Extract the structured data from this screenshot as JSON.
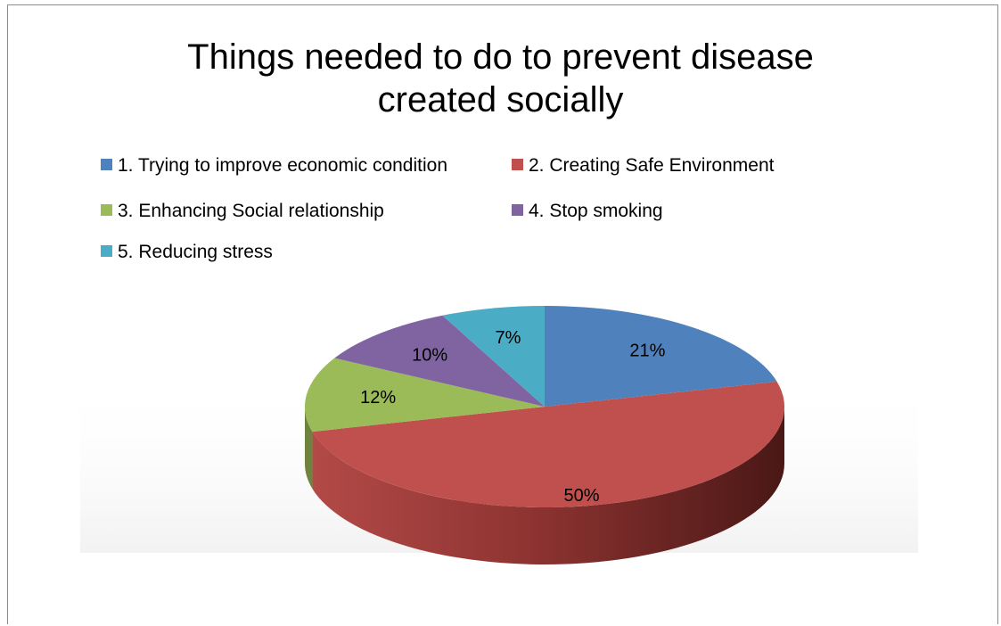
{
  "chart_data": {
    "type": "pie",
    "title_lines": [
      "Things needed to do to prevent disease",
      "created socially"
    ],
    "series": [
      {
        "name": "1. Trying to improve economic condition",
        "value": 21,
        "label": "21%",
        "color": "#4f81bd"
      },
      {
        "name": "2. Creating Safe Environment",
        "value": 50,
        "label": "50%",
        "color": "#c0504d"
      },
      {
        "name": "3. Enhancing Social relationship",
        "value": 12,
        "label": "12%",
        "color": "#9bbb59"
      },
      {
        "name": "4. Stop smoking",
        "value": 10,
        "label": "10%",
        "color": "#8064a2"
      },
      {
        "name": "5. Reducing stress",
        "value": 7,
        "label": "7%",
        "color": "#4bacc6"
      }
    ],
    "legend_position": "top",
    "style": "3d"
  }
}
